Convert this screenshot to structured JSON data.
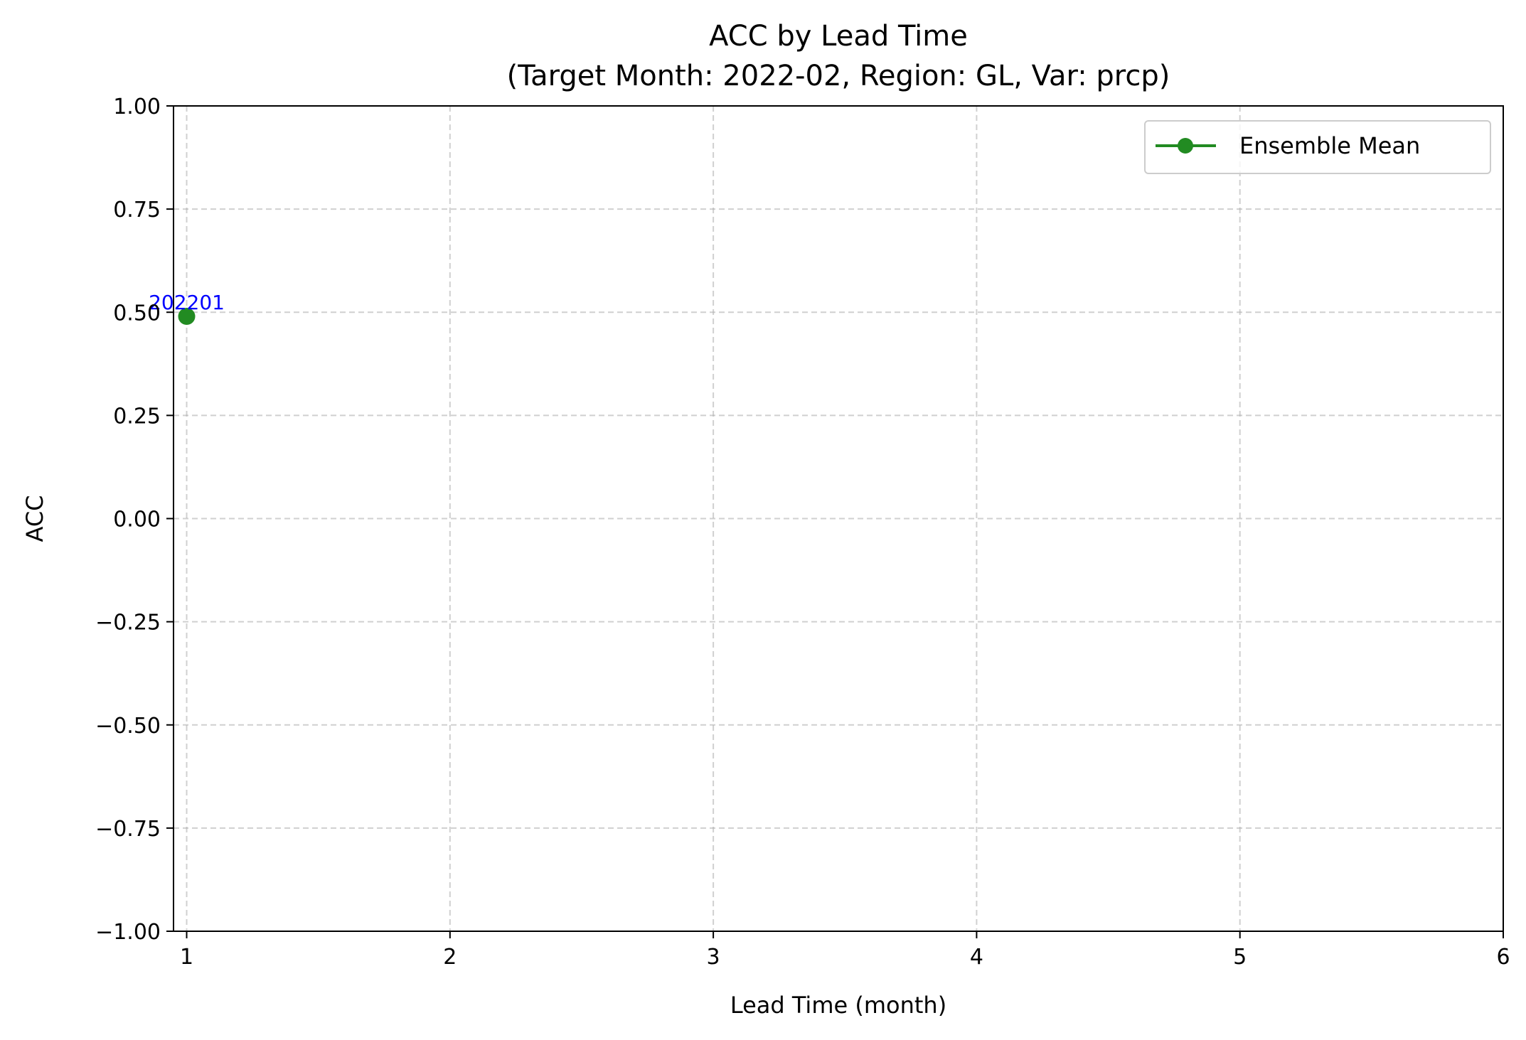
{
  "chart_data": {
    "type": "line",
    "title": "ACC by Lead Time",
    "subtitle": "(Target Month: 2022-02, Region: GL, Var: prcp)",
    "xlabel": "Lead Time (month)",
    "ylabel": "ACC",
    "xlim": [
      0.95,
      6
    ],
    "ylim": [
      -1.0,
      1.0
    ],
    "xticks": [
      1,
      2,
      3,
      4,
      5,
      6
    ],
    "xtick_labels": [
      "1",
      "2",
      "3",
      "4",
      "5",
      "6"
    ],
    "yticks": [
      1.0,
      0.75,
      0.5,
      0.25,
      0.0,
      -0.25,
      -0.5,
      -0.75,
      -1.0
    ],
    "ytick_labels": [
      "1.00",
      "0.75",
      "0.50",
      "0.25",
      "0.00",
      "−0.25",
      "−0.50",
      "−0.75",
      "−1.00"
    ],
    "grid": true,
    "grid_style": "dashed",
    "legend_position": "top-right",
    "series": [
      {
        "name": "Ensemble Mean",
        "color": "#228b22",
        "marker": "circle",
        "x": [
          1
        ],
        "y": [
          0.49
        ]
      }
    ],
    "annotations": [
      {
        "text": "202201",
        "x": 1,
        "y": 0.49,
        "color": "#0000ff"
      }
    ]
  }
}
